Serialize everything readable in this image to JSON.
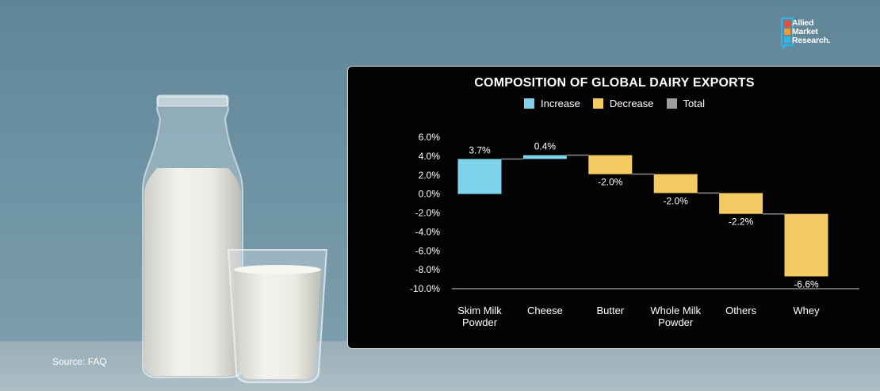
{
  "source": "Source: FAQ",
  "logo": {
    "line1": "Allied",
    "line2": "Market",
    "line3": "Research."
  },
  "colors": {
    "increase": "#7ed3ea",
    "decrease": "#f4cb63",
    "total": "#9e9e9e",
    "connector": "#8a8a8a",
    "text": "#ffffff"
  },
  "chart_data": {
    "type": "waterfall",
    "title": "COMPOSITION OF GLOBAL DAIRY EXPORTS",
    "legend": [
      "Increase",
      "Decrease",
      "Total"
    ],
    "categories": [
      "Skim Milk Powder",
      "Cheese",
      "Butter",
      "Whole Milk Powder",
      "Others",
      "Whey"
    ],
    "category_lines": [
      [
        "Skim Milk",
        "Powder"
      ],
      [
        "Cheese"
      ],
      [
        "Butter"
      ],
      [
        "Whole Milk",
        "Powder"
      ],
      [
        "Others"
      ],
      [
        "Whey"
      ]
    ],
    "values": [
      3.7,
      0.4,
      -2.0,
      -2.0,
      -2.2,
      -6.6
    ],
    "value_labels": [
      "3.7%",
      "0.4%",
      "-2.0%",
      "-2.0%",
      "-2.2%",
      "-6.6%"
    ],
    "ylim": [
      -10.0,
      6.0
    ],
    "yticks": [
      6.0,
      4.0,
      2.0,
      0.0,
      -2.0,
      -4.0,
      -6.0,
      -8.0,
      -10.0
    ],
    "ytick_labels": [
      "6.0%",
      "4.0%",
      "2.0%",
      "0.0%",
      "-2.0%",
      "-4.0%",
      "-6.0%",
      "-8.0%",
      "-10.0%"
    ],
    "grid": false,
    "legend_position": "top"
  }
}
